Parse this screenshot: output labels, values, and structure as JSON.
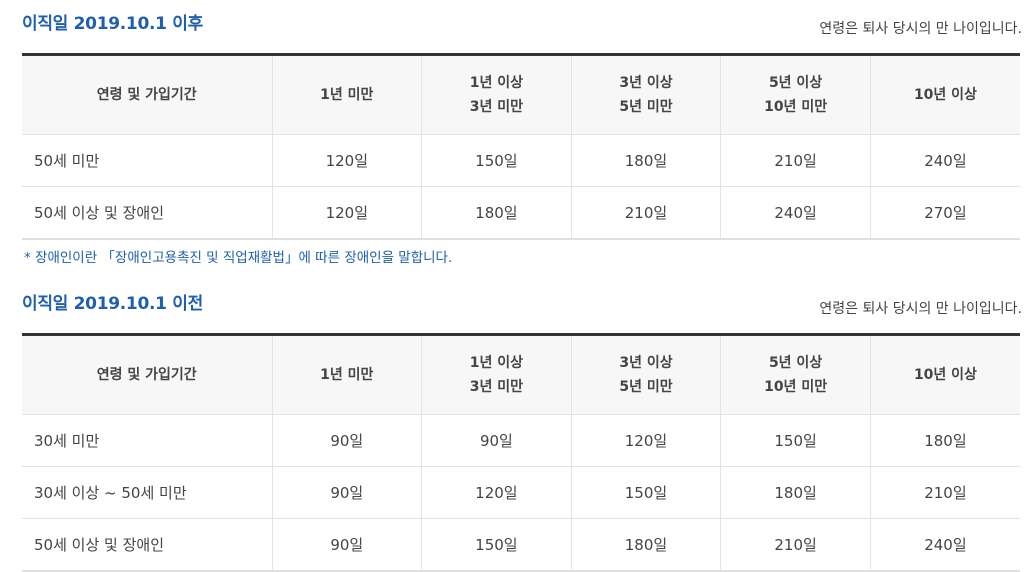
{
  "sections": [
    {
      "title": "이직일 2019.10.1 이후",
      "note": "연령은 퇴사 당시의 만 나이입니다.",
      "headers": [
        [
          "연령 및 가입기간"
        ],
        [
          "1년 미만"
        ],
        [
          "1년 이상",
          "3년 미만"
        ],
        [
          "3년 이상",
          "5년 미만"
        ],
        [
          "5년 이상",
          "10년 미만"
        ],
        [
          "10년 이상"
        ]
      ],
      "rows": [
        [
          "50세 미만",
          "120일",
          "150일",
          "180일",
          "210일",
          "240일"
        ],
        [
          "50세 이상 및 장애인",
          "120일",
          "180일",
          "210일",
          "240일",
          "270일"
        ]
      ]
    },
    {
      "title": "이직일 2019.10.1 이전",
      "note": "연령은 퇴사 당시의 만 나이입니다.",
      "headers": [
        [
          "연령 및 가입기간"
        ],
        [
          "1년 미만"
        ],
        [
          "1년 이상",
          "3년 미만"
        ],
        [
          "3년 이상",
          "5년 미만"
        ],
        [
          "5년 이상",
          "10년 미만"
        ],
        [
          "10년 이상"
        ]
      ],
      "rows": [
        [
          "30세 미만",
          "90일",
          "90일",
          "120일",
          "150일",
          "180일"
        ],
        [
          "30세 이상 ~ 50세 미만",
          "90일",
          "120일",
          "150일",
          "180일",
          "210일"
        ],
        [
          "50세 이상 및 장애인",
          "90일",
          "150일",
          "180일",
          "210일",
          "240일"
        ]
      ]
    }
  ],
  "footnote": "* 장애인이란 「장애인고용촉진 및 직업재활법」에 따른 장애인을 말합니다.",
  "colors": {
    "title": "#1f5fae",
    "header_bg": "#f7f7f7",
    "top_border": "#333333"
  }
}
